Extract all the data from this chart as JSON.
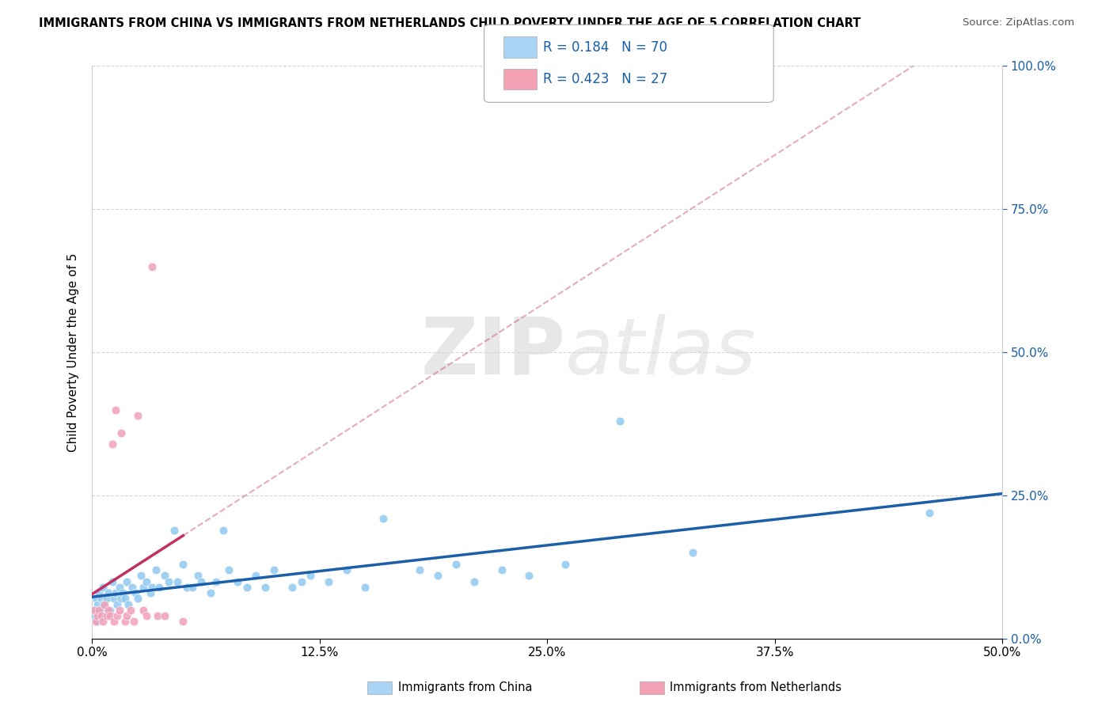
{
  "title": "IMMIGRANTS FROM CHINA VS IMMIGRANTS FROM NETHERLANDS CHILD POVERTY UNDER THE AGE OF 5 CORRELATION CHART",
  "source": "Source: ZipAtlas.com",
  "ylabel": "Child Poverty Under the Age of 5",
  "xlim": [
    0.0,
    0.5
  ],
  "ylim": [
    0.0,
    1.0
  ],
  "xtick_labels": [
    "0.0%",
    "",
    "12.5%",
    "",
    "25.0%",
    "",
    "37.5%",
    "",
    "50.0%"
  ],
  "xtick_vals": [
    0.0,
    0.0625,
    0.125,
    0.1875,
    0.25,
    0.3125,
    0.375,
    0.4375,
    0.5
  ],
  "xtick_show": [
    "0.0%",
    "12.5%",
    "25.0%",
    "37.5%",
    "50.0%"
  ],
  "xtick_show_vals": [
    0.0,
    0.125,
    0.25,
    0.375,
    0.5
  ],
  "ytick_labels": [
    "0.0%",
    "25.0%",
    "50.0%",
    "75.0%",
    "100.0%"
  ],
  "ytick_vals": [
    0.0,
    0.25,
    0.5,
    0.75,
    1.0
  ],
  "series_china": {
    "label": "Immigrants from China",
    "R": 0.184,
    "N": 70,
    "color": "#90c8f0",
    "trend_color": "#1a5fa8",
    "x": [
      0.001,
      0.002,
      0.002,
      0.003,
      0.003,
      0.004,
      0.004,
      0.005,
      0.005,
      0.006,
      0.006,
      0.007,
      0.008,
      0.009,
      0.01,
      0.011,
      0.012,
      0.013,
      0.014,
      0.015,
      0.016,
      0.017,
      0.018,
      0.019,
      0.02,
      0.022,
      0.024,
      0.025,
      0.027,
      0.028,
      0.03,
      0.032,
      0.033,
      0.035,
      0.037,
      0.04,
      0.042,
      0.045,
      0.047,
      0.05,
      0.052,
      0.055,
      0.058,
      0.06,
      0.065,
      0.068,
      0.072,
      0.075,
      0.08,
      0.085,
      0.09,
      0.095,
      0.1,
      0.11,
      0.115,
      0.12,
      0.13,
      0.14,
      0.15,
      0.16,
      0.18,
      0.19,
      0.2,
      0.21,
      0.225,
      0.24,
      0.26,
      0.29,
      0.33,
      0.46
    ],
    "y": [
      0.04,
      0.05,
      0.07,
      0.03,
      0.06,
      0.04,
      0.08,
      0.05,
      0.07,
      0.06,
      0.09,
      0.04,
      0.07,
      0.08,
      0.05,
      0.1,
      0.07,
      0.08,
      0.06,
      0.09,
      0.07,
      0.08,
      0.07,
      0.1,
      0.06,
      0.09,
      0.08,
      0.07,
      0.11,
      0.09,
      0.1,
      0.08,
      0.09,
      0.12,
      0.09,
      0.11,
      0.1,
      0.19,
      0.1,
      0.13,
      0.09,
      0.09,
      0.11,
      0.1,
      0.08,
      0.1,
      0.19,
      0.12,
      0.1,
      0.09,
      0.11,
      0.09,
      0.12,
      0.09,
      0.1,
      0.11,
      0.1,
      0.12,
      0.09,
      0.21,
      0.12,
      0.11,
      0.13,
      0.1,
      0.12,
      0.11,
      0.13,
      0.38,
      0.15,
      0.22
    ],
    "marker_size": 60
  },
  "series_netherlands": {
    "label": "Immigrants from Netherlands",
    "R": 0.423,
    "N": 27,
    "color": "#f0a0b8",
    "trend_color": "#c03060",
    "x": [
      0.001,
      0.002,
      0.003,
      0.004,
      0.005,
      0.006,
      0.007,
      0.008,
      0.009,
      0.01,
      0.011,
      0.012,
      0.013,
      0.014,
      0.015,
      0.016,
      0.018,
      0.019,
      0.021,
      0.023,
      0.025,
      0.028,
      0.03,
      0.033,
      0.036,
      0.04,
      0.05
    ],
    "y": [
      0.05,
      0.03,
      0.04,
      0.05,
      0.04,
      0.03,
      0.06,
      0.04,
      0.05,
      0.04,
      0.34,
      0.03,
      0.4,
      0.04,
      0.05,
      0.36,
      0.03,
      0.04,
      0.05,
      0.03,
      0.39,
      0.05,
      0.04,
      0.65,
      0.04,
      0.04,
      0.03
    ],
    "marker_size": 60
  },
  "watermark_zip": "ZIP",
  "watermark_atlas": "atlas",
  "background_color": "#ffffff",
  "grid_color": "#d0d0d0",
  "legend_box_color_china": "#aad4f5",
  "legend_box_color_netherlands": "#f4a0b5",
  "legend_R_color": "#1a5fa8",
  "legend_N_color": "#e05000"
}
